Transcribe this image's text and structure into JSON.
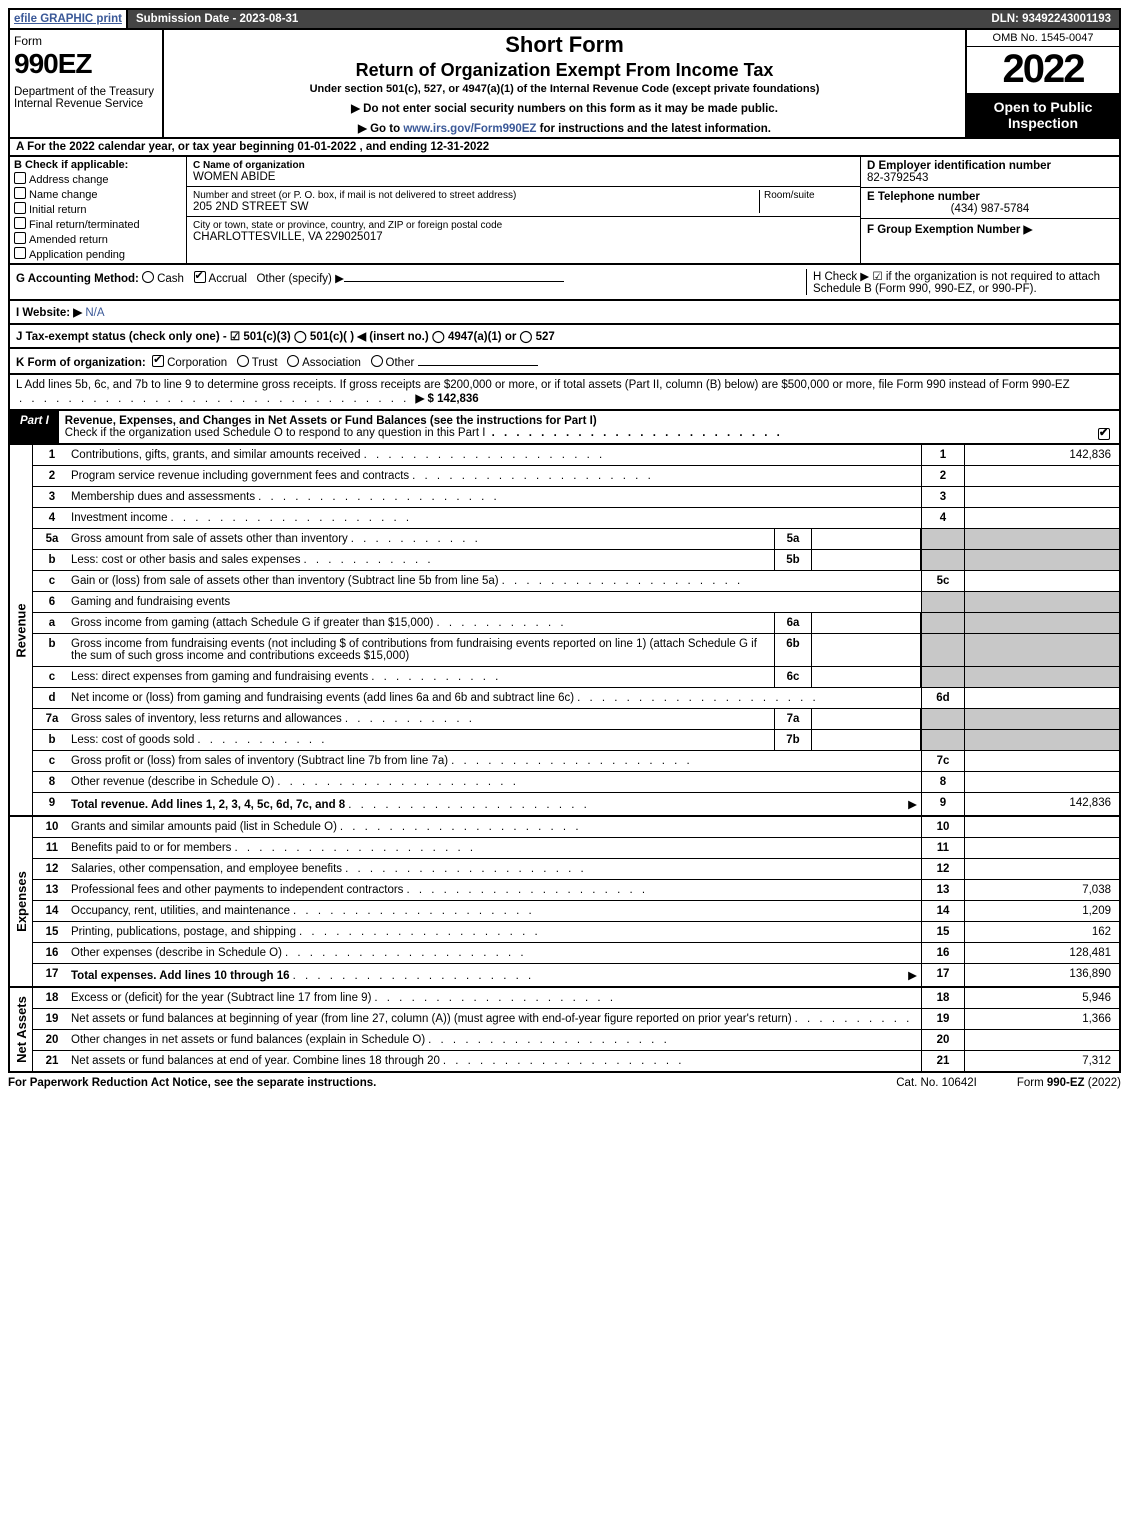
{
  "topbar": {
    "efile": "efile GRAPHIC print",
    "submission": "Submission Date - 2023-08-31",
    "dln": "DLN: 93492243001193"
  },
  "header": {
    "form_word": "Form",
    "form_number": "990EZ",
    "dept": "Department of the Treasury\nInternal Revenue Service",
    "title_sf": "Short Form",
    "title_main": "Return of Organization Exempt From Income Tax",
    "subtitle": "Under section 501(c), 527, or 4947(a)(1) of the Internal Revenue Code (except private foundations)",
    "ssn_warn": "▶ Do not enter social security numbers on this form as it may be made public.",
    "goto": "▶ Go to www.irs.gov/Form990EZ for instructions and the latest information.",
    "goto_link": "www.irs.gov/Form990EZ",
    "omb": "OMB No. 1545-0047",
    "year": "2022",
    "open": "Open to Public Inspection"
  },
  "period": {
    "text_a": "A  For the 2022 calendar year, or tax year beginning 01-01-2022 , and ending 12-31-2022"
  },
  "boxB": {
    "label": "B  Check if applicable:",
    "items": [
      "Address change",
      "Name change",
      "Initial return",
      "Final return/terminated",
      "Amended return",
      "Application pending"
    ]
  },
  "boxC": {
    "name_lbl": "C Name of organization",
    "name": "WOMEN ABIDE",
    "addr_lbl": "Number and street (or P. O. box, if mail is not delivered to street address)",
    "room_lbl": "Room/suite",
    "addr": "205 2ND STREET SW",
    "city_lbl": "City or town, state or province, country, and ZIP or foreign postal code",
    "city": "CHARLOTTESVILLE, VA  229025017"
  },
  "boxD": {
    "lbl": "D Employer identification number",
    "val": "82-3792543"
  },
  "boxE": {
    "lbl": "E Telephone number",
    "val": "(434) 987-5784"
  },
  "boxF": {
    "lbl": "F Group Exemption Number  ▶",
    "val": ""
  },
  "lineG": {
    "lbl": "G Accounting Method:",
    "cash": "Cash",
    "accrual": "Accrual",
    "other": "Other (specify) ▶"
  },
  "lineH": {
    "text": "H  Check ▶ ☑ if the organization is not required to attach Schedule B (Form 990, 990-EZ, or 990-PF)."
  },
  "lineI": {
    "lbl": "I Website: ▶",
    "val": "N/A"
  },
  "lineJ": {
    "text": "J Tax-exempt status (check only one) -  ☑ 501(c)(3)  ◯ 501(c)(   ) ◀ (insert no.)  ◯ 4947(a)(1) or  ◯ 527"
  },
  "lineK": {
    "lbl": "K Form of organization:",
    "corp": "Corporation",
    "trust": "Trust",
    "assoc": "Association",
    "other": "Other"
  },
  "lineL": {
    "text": "L Add lines 5b, 6c, and 7b to line 9 to determine gross receipts. If gross receipts are $200,000 or more, or if total assets (Part II, column (B) below) are $500,000 or more, file Form 990 instead of Form 990-EZ",
    "amount_lbl": "▶ $ 142,836"
  },
  "partI": {
    "tag": "Part I",
    "title": "Revenue, Expenses, and Changes in Net Assets or Fund Balances (see the instructions for Part I)",
    "schedo": "Check if the organization used Schedule O to respond to any question in this Part I"
  },
  "sections": {
    "revenue_label": "Revenue",
    "expenses_label": "Expenses",
    "netassets_label": "Net Assets"
  },
  "lines": {
    "l1": {
      "n": "1",
      "d": "Contributions, gifts, grants, and similar amounts received",
      "rn": "1",
      "v": "142,836"
    },
    "l2": {
      "n": "2",
      "d": "Program service revenue including government fees and contracts",
      "rn": "2",
      "v": ""
    },
    "l3": {
      "n": "3",
      "d": "Membership dues and assessments",
      "rn": "3",
      "v": ""
    },
    "l4": {
      "n": "4",
      "d": "Investment income",
      "rn": "4",
      "v": ""
    },
    "l5a": {
      "n": "5a",
      "d": "Gross amount from sale of assets other than inventory",
      "in": "5a"
    },
    "l5b": {
      "n": "b",
      "d": "Less: cost or other basis and sales expenses",
      "in": "5b"
    },
    "l5c": {
      "n": "c",
      "d": "Gain or (loss) from sale of assets other than inventory (Subtract line 5b from line 5a)",
      "rn": "5c",
      "v": ""
    },
    "l6": {
      "n": "6",
      "d": "Gaming and fundraising events"
    },
    "l6a": {
      "n": "a",
      "d": "Gross income from gaming (attach Schedule G if greater than $15,000)",
      "in": "6a"
    },
    "l6b": {
      "n": "b",
      "d": "Gross income from fundraising events (not including $                        of contributions from fundraising events reported on line 1) (attach Schedule G if the sum of such gross income and contributions exceeds $15,000)",
      "in": "6b"
    },
    "l6c": {
      "n": "c",
      "d": "Less: direct expenses from gaming and fundraising events",
      "in": "6c"
    },
    "l6d": {
      "n": "d",
      "d": "Net income or (loss) from gaming and fundraising events (add lines 6a and 6b and subtract line 6c)",
      "rn": "6d",
      "v": ""
    },
    "l7a": {
      "n": "7a",
      "d": "Gross sales of inventory, less returns and allowances",
      "in": "7a"
    },
    "l7b": {
      "n": "b",
      "d": "Less: cost of goods sold",
      "in": "7b"
    },
    "l7c": {
      "n": "c",
      "d": "Gross profit or (loss) from sales of inventory (Subtract line 7b from line 7a)",
      "rn": "7c",
      "v": ""
    },
    "l8": {
      "n": "8",
      "d": "Other revenue (describe in Schedule O)",
      "rn": "8",
      "v": ""
    },
    "l9": {
      "n": "9",
      "d": "Total revenue. Add lines 1, 2, 3, 4, 5c, 6d, 7c, and 8",
      "rn": "9",
      "v": "142,836",
      "bold": true,
      "arrow": true
    },
    "l10": {
      "n": "10",
      "d": "Grants and similar amounts paid (list in Schedule O)",
      "rn": "10",
      "v": ""
    },
    "l11": {
      "n": "11",
      "d": "Benefits paid to or for members",
      "rn": "11",
      "v": ""
    },
    "l12": {
      "n": "12",
      "d": "Salaries, other compensation, and employee benefits",
      "rn": "12",
      "v": ""
    },
    "l13": {
      "n": "13",
      "d": "Professional fees and other payments to independent contractors",
      "rn": "13",
      "v": "7,038"
    },
    "l14": {
      "n": "14",
      "d": "Occupancy, rent, utilities, and maintenance",
      "rn": "14",
      "v": "1,209"
    },
    "l15": {
      "n": "15",
      "d": "Printing, publications, postage, and shipping",
      "rn": "15",
      "v": "162"
    },
    "l16": {
      "n": "16",
      "d": "Other expenses (describe in Schedule O)",
      "rn": "16",
      "v": "128,481"
    },
    "l17": {
      "n": "17",
      "d": "Total expenses. Add lines 10 through 16",
      "rn": "17",
      "v": "136,890",
      "bold": true,
      "arrow": true
    },
    "l18": {
      "n": "18",
      "d": "Excess or (deficit) for the year (Subtract line 17 from line 9)",
      "rn": "18",
      "v": "5,946"
    },
    "l19": {
      "n": "19",
      "d": "Net assets or fund balances at beginning of year (from line 27, column (A)) (must agree with end-of-year figure reported on prior year's return)",
      "rn": "19",
      "v": "1,366"
    },
    "l20": {
      "n": "20",
      "d": "Other changes in net assets or fund balances (explain in Schedule O)",
      "rn": "20",
      "v": ""
    },
    "l21": {
      "n": "21",
      "d": "Net assets or fund balances at end of year. Combine lines 18 through 20",
      "rn": "21",
      "v": "7,312"
    }
  },
  "footer": {
    "left": "For Paperwork Reduction Act Notice, see the separate instructions.",
    "center": "Cat. No. 10642I",
    "right": "Form 990-EZ (2022)"
  }
}
